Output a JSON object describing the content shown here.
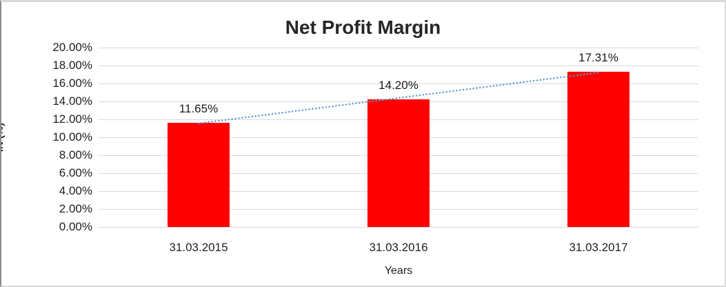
{
  "colors": {
    "bar": "#FF0000",
    "trendline": "#5B9BD5",
    "gridline": "#D9D9D9",
    "text": "#202020",
    "title_text": "#262626"
  },
  "chart_data": {
    "type": "bar",
    "title": "Net Profit Margin",
    "xlabel": "Years",
    "ylabel": "IN (%)",
    "categories": [
      "31.03.2015",
      "31.03.2016",
      "31.03.2017"
    ],
    "values": [
      11.65,
      14.2,
      17.31
    ],
    "data_labels": [
      "11.65%",
      "14.20%",
      "17.31%"
    ],
    "ytick_labels": [
      "0.00%",
      "2.00%",
      "4.00%",
      "6.00%",
      "8.00%",
      "10.00%",
      "12.00%",
      "14.00%",
      "16.00%",
      "18.00%",
      "20.00%"
    ],
    "ylim": [
      0,
      20
    ],
    "ytick_step": 2,
    "grid": true,
    "legend": "none",
    "series": [
      {
        "name": "Net Profit Margin",
        "type": "bar",
        "color": "#FF0000",
        "values": [
          11.65,
          14.2,
          17.31
        ]
      },
      {
        "name": "trendline",
        "type": "dotted-line",
        "color": "#5B9BD5",
        "fit": "linear"
      }
    ]
  }
}
